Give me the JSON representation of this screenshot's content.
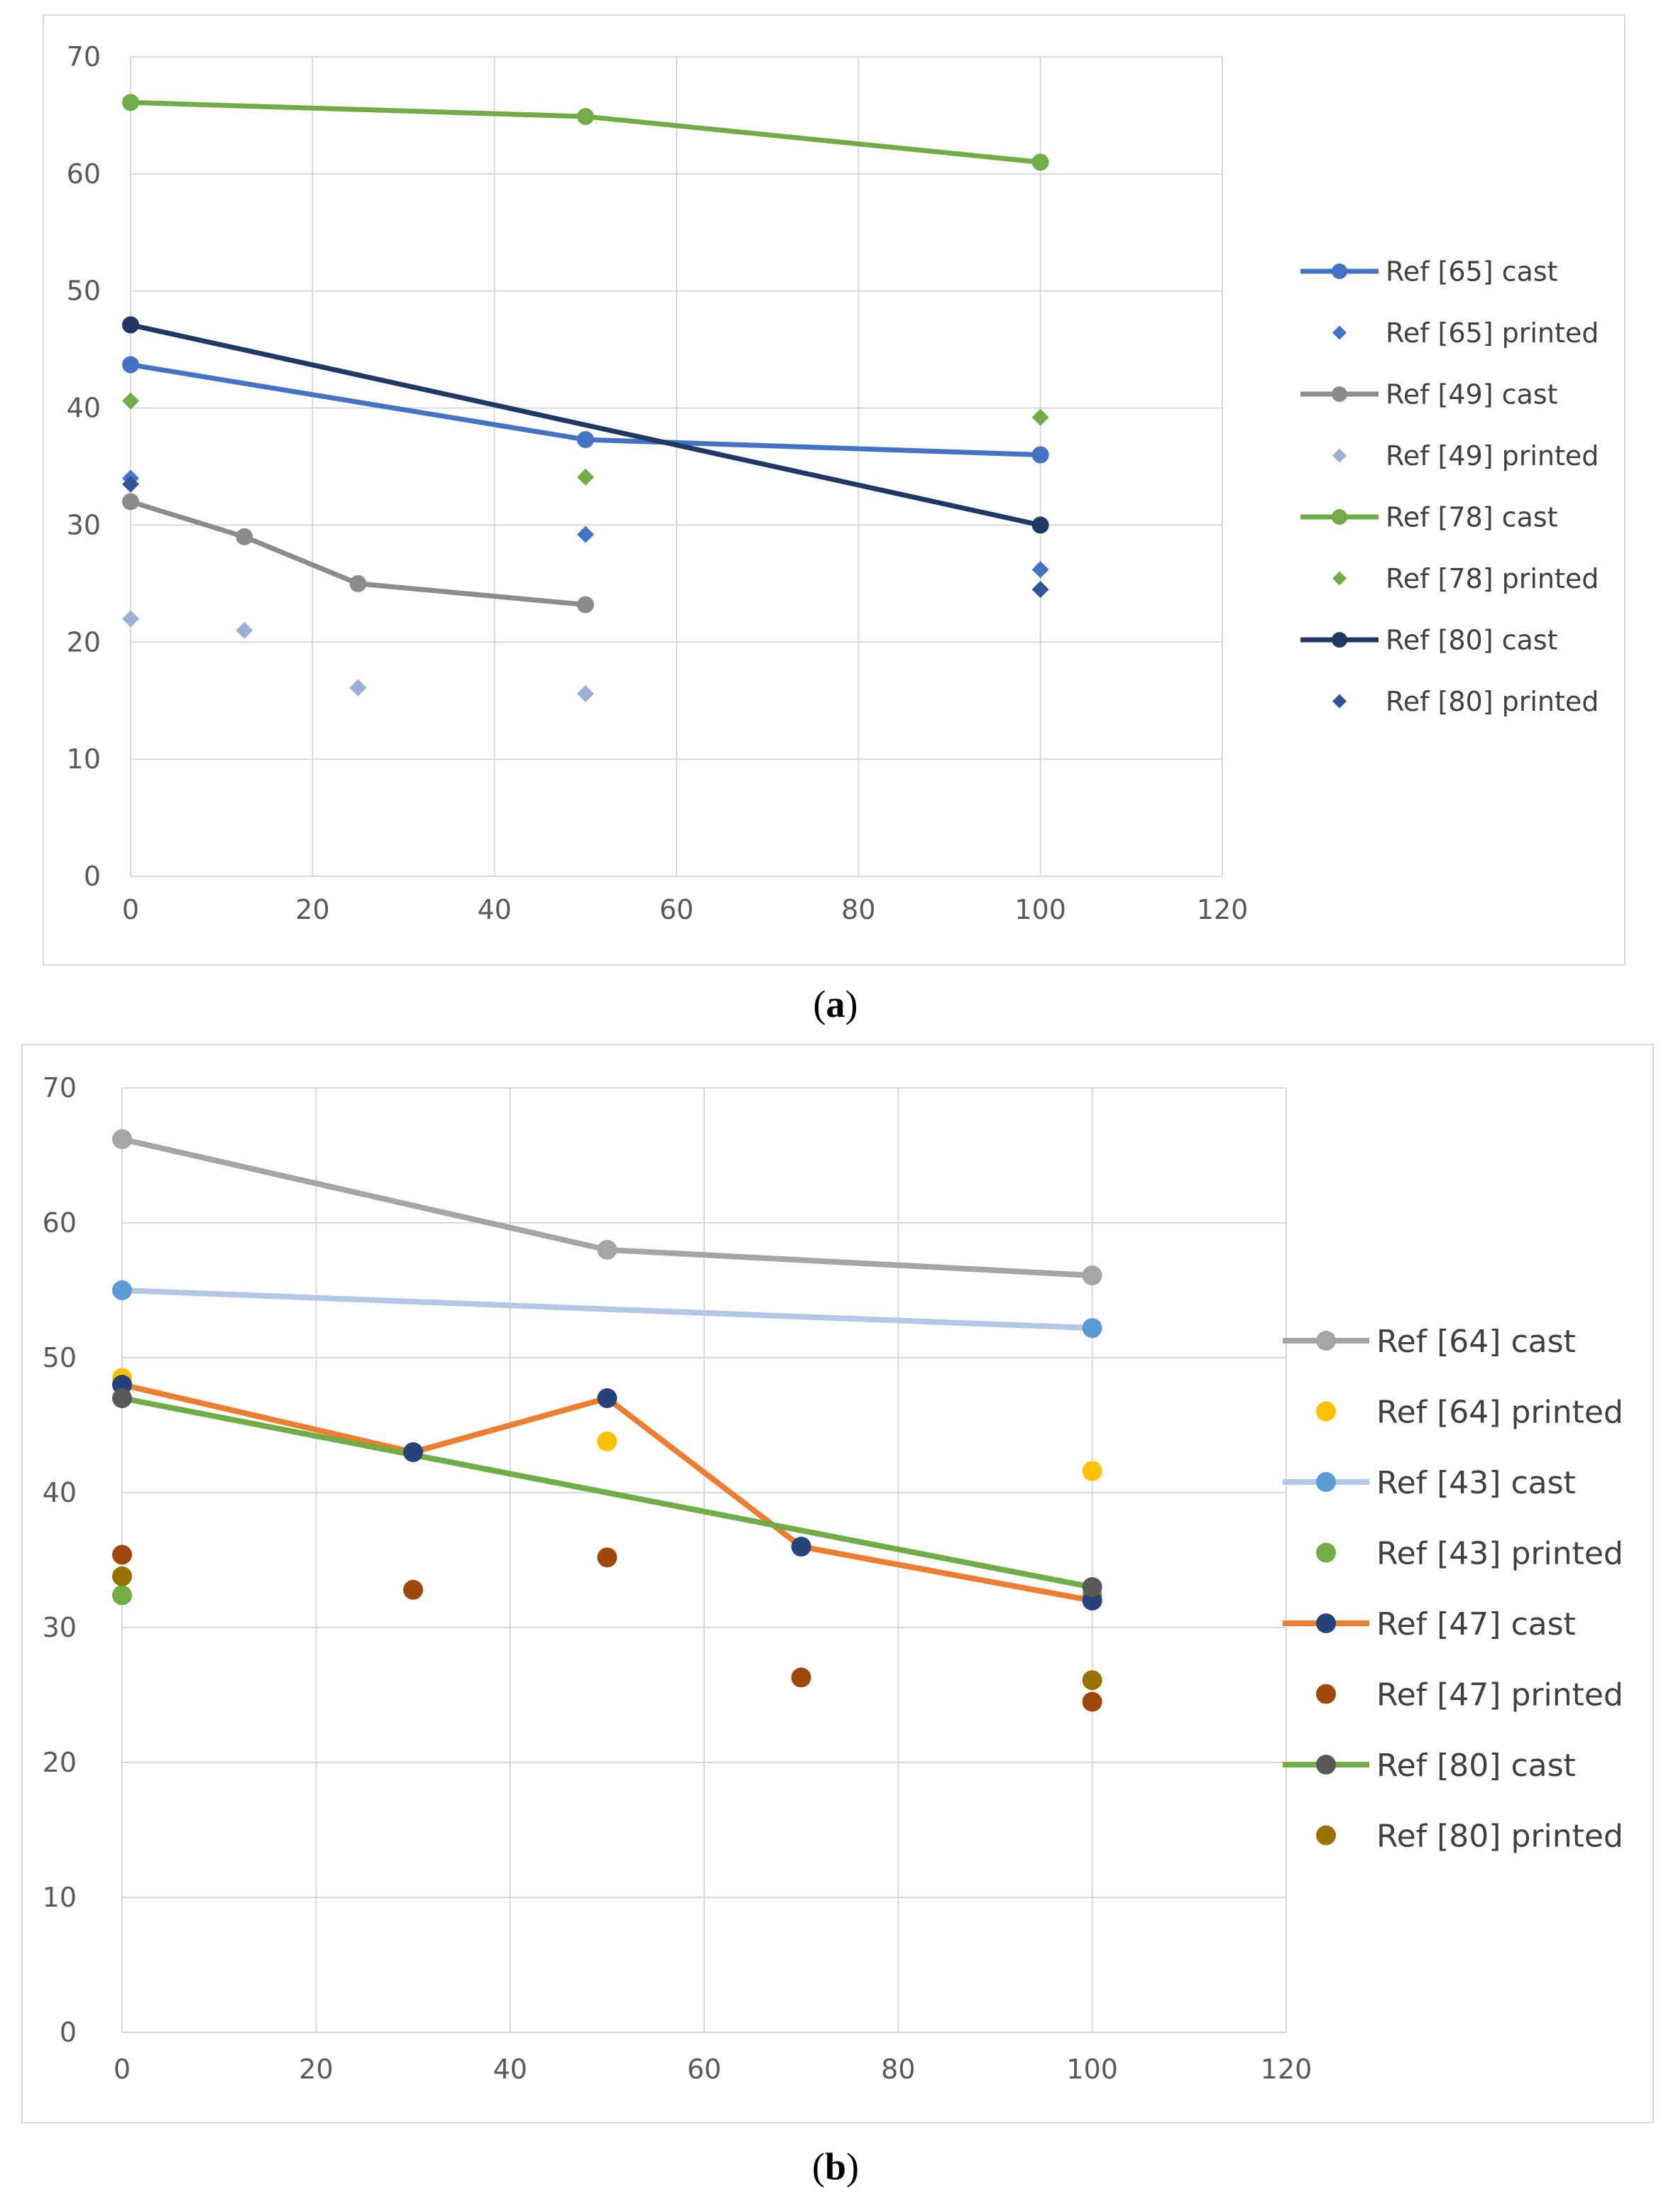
{
  "chart_data": [
    {
      "type": "line",
      "panel_label": "a",
      "title": "",
      "xlabel": "",
      "ylabel": "",
      "xlim": [
        0,
        120
      ],
      "ylim": [
        0,
        70
      ],
      "x_ticks": [
        0,
        20,
        40,
        60,
        80,
        100,
        120
      ],
      "y_ticks": [
        0,
        10,
        20,
        30,
        40,
        50,
        60,
        70
      ],
      "grid": true,
      "legend_position": "right",
      "series": [
        {
          "name": "Ref [65] cast",
          "kind": "line",
          "color": "#4472C4",
          "marker": "circle",
          "points": [
            [
              0,
              43.7
            ],
            [
              50,
              37.3
            ],
            [
              100,
              36.0
            ]
          ]
        },
        {
          "name": "Ref [65] printed",
          "kind": "scatter",
          "color": "#4472C4",
          "marker": "diamond",
          "points": [
            [
              0,
              34.0
            ],
            [
              50,
              29.2
            ],
            [
              100,
              26.2
            ]
          ]
        },
        {
          "name": "Ref [49] cast",
          "kind": "line",
          "color": "#8C8C8C",
          "marker": "circle",
          "points": [
            [
              0,
              32.0
            ],
            [
              12.5,
              29.0
            ],
            [
              25,
              25.0
            ],
            [
              50,
              23.2
            ]
          ]
        },
        {
          "name": "Ref [49] printed",
          "kind": "scatter",
          "color": "#9DAFD6",
          "marker": "diamond",
          "points": [
            [
              0,
              22.0
            ],
            [
              12.5,
              21.0
            ],
            [
              25,
              16.1
            ],
            [
              50,
              15.6
            ]
          ]
        },
        {
          "name": "Ref [78] cast",
          "kind": "line",
          "color": "#70AD47",
          "marker": "circle",
          "points": [
            [
              0,
              66.1
            ],
            [
              50,
              64.9
            ],
            [
              100,
              61.0
            ]
          ]
        },
        {
          "name": "Ref [78] printed",
          "kind": "scatter",
          "color": "#70AD47",
          "marker": "diamond",
          "points": [
            [
              0,
              40.6
            ],
            [
              50,
              34.1
            ],
            [
              100,
              39.2
            ]
          ]
        },
        {
          "name": "Ref [80] cast",
          "kind": "line",
          "color": "#203864",
          "marker": "circle",
          "points": [
            [
              0,
              47.1
            ],
            [
              100,
              30.0
            ]
          ]
        },
        {
          "name": "Ref [80] printed",
          "kind": "scatter",
          "color": "#2F5597",
          "marker": "diamond",
          "points": [
            [
              0,
              33.5
            ],
            [
              100,
              24.5
            ]
          ]
        }
      ]
    },
    {
      "type": "line",
      "panel_label": "b",
      "title": "",
      "xlabel": "",
      "ylabel": "",
      "xlim": [
        0,
        120
      ],
      "ylim": [
        0,
        70
      ],
      "x_ticks": [
        0,
        20,
        40,
        60,
        80,
        100,
        120
      ],
      "y_ticks": [
        0,
        10,
        20,
        30,
        40,
        50,
        60,
        70
      ],
      "grid": true,
      "legend_position": "right",
      "series": [
        {
          "name": "Ref [64] cast",
          "kind": "line",
          "color": "#A5A5A5",
          "marker_color": "#A5A5A5",
          "marker": "circle",
          "points": [
            [
              0,
              66.2
            ],
            [
              50,
              58.0
            ],
            [
              100,
              56.1
            ]
          ]
        },
        {
          "name": "Ref [64] printed",
          "kind": "scatter",
          "color": "#FFC000",
          "marker": "circle",
          "points": [
            [
              0,
              48.5
            ],
            [
              50,
              43.8
            ],
            [
              100,
              41.6
            ]
          ]
        },
        {
          "name": "Ref [43] cast",
          "kind": "line",
          "color": "#B4C7E7",
          "marker_color": "#5B9BD5",
          "marker": "circle",
          "points": [
            [
              0,
              55.0
            ],
            [
              100,
              52.2
            ]
          ]
        },
        {
          "name": "Ref [43] printed",
          "kind": "scatter",
          "color": "#70AD47",
          "marker": "circle",
          "points": [
            [
              0,
              32.4
            ],
            [
              100,
              32.4
            ]
          ]
        },
        {
          "name": "Ref [47] cast",
          "kind": "line",
          "color": "#ED7D31",
          "marker_color": "#264478",
          "marker": "circle",
          "points": [
            [
              0,
              48.0
            ],
            [
              30,
              43.0
            ],
            [
              50,
              47.0
            ],
            [
              70,
              36.0
            ],
            [
              100,
              32.0
            ]
          ]
        },
        {
          "name": "Ref [47] printed",
          "kind": "scatter",
          "color": "#9E480E",
          "marker": "circle",
          "points": [
            [
              0,
              35.4
            ],
            [
              30,
              32.8
            ],
            [
              50,
              35.2
            ],
            [
              70,
              26.3
            ],
            [
              100,
              24.5
            ]
          ]
        },
        {
          "name": "Ref [80] cast",
          "kind": "line",
          "color": "#70AD47",
          "marker_color": "#595959",
          "marker": "circle",
          "points": [
            [
              0,
              47.0
            ],
            [
              100,
              33.0
            ]
          ]
        },
        {
          "name": "Ref [80] printed",
          "kind": "scatter",
          "color": "#997300",
          "marker": "circle",
          "points": [
            [
              0,
              33.8
            ],
            [
              100,
              26.1
            ]
          ]
        }
      ]
    }
  ],
  "captions": {
    "a": {
      "open": "(",
      "letter": "a",
      "close": ")"
    },
    "b": {
      "open": "(",
      "letter": "b",
      "close": ")"
    }
  }
}
